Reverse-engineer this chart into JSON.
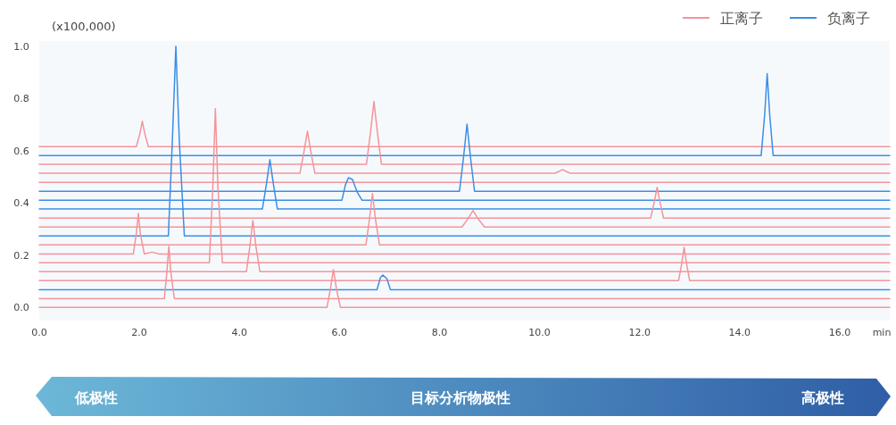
{
  "chart_data": {
    "type": "line",
    "ylabel": "(x100,000)",
    "xlabel": "min",
    "annotations": [
      "低极性",
      "目标分析物极性",
      "高极性"
    ],
    "xlim": [
      0,
      17
    ],
    "ylim": [
      -0.05,
      1.02
    ],
    "xticks": [
      {
        "value": 0,
        "label": "0.0"
      },
      {
        "value": 2,
        "label": "2.0"
      },
      {
        "value": 4,
        "label": "4.0"
      },
      {
        "value": 6,
        "label": "6.0"
      },
      {
        "value": 8,
        "label": "8.0"
      },
      {
        "value": 10,
        "label": "10.0"
      },
      {
        "value": 12,
        "label": "12.0"
      },
      {
        "value": 14,
        "label": "14.0"
      },
      {
        "value": 16,
        "label": "16.0"
      }
    ],
    "yticks": [
      {
        "value": 0,
        "label": "0.0"
      },
      {
        "value": 0.2,
        "label": "0.2"
      },
      {
        "value": 0.4,
        "label": "0.4"
      },
      {
        "value": 0.6,
        "label": "0.6"
      },
      {
        "value": 0.8,
        "label": "0.8"
      },
      {
        "value": 1,
        "label": "1.0"
      }
    ],
    "legend": "top right",
    "series": [
      {
        "name": "正离子",
        "color": "#f4949a",
        "x": [
          0,
          1.94,
          2.01,
          2.06,
          2.11,
          2.18,
          17
        ],
        "values": [
          0.616,
          0.616,
          0.665,
          0.713,
          0.665,
          0.616,
          0.616
        ]
      },
      {
        "name": "负离子",
        "color": "#3a8ee6",
        "x": [
          0,
          14.43,
          14.5,
          14.55,
          14.6,
          14.67,
          17
        ],
        "values": [
          0.582,
          0.582,
          0.739,
          0.895,
          0.739,
          0.582,
          0.582
        ]
      },
      {
        "color": "#f4949a",
        "x": [
          0,
          6.54,
          6.62,
          6.69,
          6.76,
          6.84,
          17
        ],
        "values": [
          0.548,
          0.548,
          0.669,
          0.789,
          0.669,
          0.548,
          0.548
        ]
      },
      {
        "color": "#f4949a",
        "x": [
          0,
          5.21,
          5.29,
          5.36,
          5.43,
          5.51,
          10.31,
          10.39,
          10.46,
          10.53,
          10.61,
          17
        ],
        "values": [
          0.514,
          0.514,
          0.595,
          0.675,
          0.595,
          0.514,
          0.514,
          0.521,
          0.528,
          0.521,
          0.514,
          0.514
        ]
      },
      {
        "color": "#f4949a",
        "x": [
          0,
          17
        ],
        "values": [
          0.479,
          0.479
        ]
      },
      {
        "color": "#3a8ee6",
        "x": [
          0,
          8.4,
          8.48,
          8.55,
          8.62,
          8.7,
          17
        ],
        "values": [
          0.445,
          0.445,
          0.574,
          0.702,
          0.574,
          0.445,
          0.445
        ]
      },
      {
        "color": "#3a8ee6",
        "x": [
          0,
          6.05,
          6.12,
          6.18,
          6.26,
          6.36,
          6.45,
          17
        ],
        "values": [
          0.411,
          0.411,
          0.47,
          0.497,
          0.49,
          0.44,
          0.411,
          0.411
        ]
      },
      {
        "color": "#3a8ee6",
        "x": [
          0,
          4.46,
          4.54,
          4.61,
          4.68,
          4.76,
          17
        ],
        "values": [
          0.377,
          0.377,
          0.472,
          0.566,
          0.472,
          0.377,
          0.377
        ]
      },
      {
        "color": "#f4949a",
        "x": [
          0,
          12.22,
          12.29,
          12.35,
          12.41,
          12.48,
          17
        ],
        "values": [
          0.342,
          0.342,
          0.401,
          0.46,
          0.401,
          0.342,
          0.342
        ]
      },
      {
        "color": "#f4949a",
        "x": [
          0,
          8.45,
          8.57,
          8.67,
          8.77,
          8.9,
          17
        ],
        "values": [
          0.308,
          0.308,
          0.34,
          0.371,
          0.34,
          0.308,
          0.308
        ]
      },
      {
        "color": "#3a8ee6",
        "x": [
          0,
          2.58,
          2.66,
          2.73,
          2.8,
          2.9,
          17
        ],
        "values": [
          0.274,
          0.274,
          0.637,
          1.0,
          0.637,
          0.274,
          0.274
        ]
      },
      {
        "color": "#f4949a",
        "x": [
          0,
          6.53,
          6.6,
          6.66,
          6.72,
          6.8,
          17
        ],
        "values": [
          0.24,
          0.24,
          0.338,
          0.436,
          0.338,
          0.24,
          0.24
        ]
      },
      {
        "color": "#f4949a",
        "x": [
          0,
          1.88,
          1.94,
          1.98,
          2.02,
          2.1,
          2.25,
          2.4,
          17
        ],
        "values": [
          0.205,
          0.205,
          0.283,
          0.36,
          0.283,
          0.205,
          0.212,
          0.205,
          0.205
        ]
      },
      {
        "color": "#f4949a",
        "x": [
          0,
          3.4,
          3.47,
          3.52,
          3.57,
          3.66,
          17
        ],
        "values": [
          0.171,
          0.171,
          0.466,
          0.761,
          0.466,
          0.171,
          0.171
        ]
      },
      {
        "color": "#f4949a",
        "x": [
          0,
          4.14,
          4.21,
          4.27,
          4.33,
          4.41,
          17
        ],
        "values": [
          0.137,
          0.137,
          0.235,
          0.333,
          0.235,
          0.137,
          0.137
        ]
      },
      {
        "color": "#f4949a",
        "x": [
          0,
          12.78,
          12.84,
          12.89,
          12.94,
          13.0,
          17
        ],
        "values": [
          0.103,
          0.103,
          0.166,
          0.23,
          0.166,
          0.103,
          0.103
        ]
      },
      {
        "color": "#3a8ee6",
        "x": [
          0,
          6.75,
          6.82,
          6.87,
          6.95,
          7.02,
          17
        ],
        "values": [
          0.068,
          0.068,
          0.115,
          0.124,
          0.11,
          0.068,
          0.068
        ]
      },
      {
        "color": "#f4949a",
        "x": [
          0,
          2.5,
          2.55,
          2.59,
          2.63,
          2.7,
          17
        ],
        "values": [
          0.034,
          0.034,
          0.134,
          0.234,
          0.134,
          0.034,
          0.034
        ]
      },
      {
        "color": "#f4949a",
        "x": [
          0,
          5.75,
          5.82,
          5.88,
          5.94,
          6.02,
          17
        ],
        "values": [
          0,
          0,
          0.072,
          0.145,
          0.072,
          0,
          0
        ]
      }
    ]
  }
}
